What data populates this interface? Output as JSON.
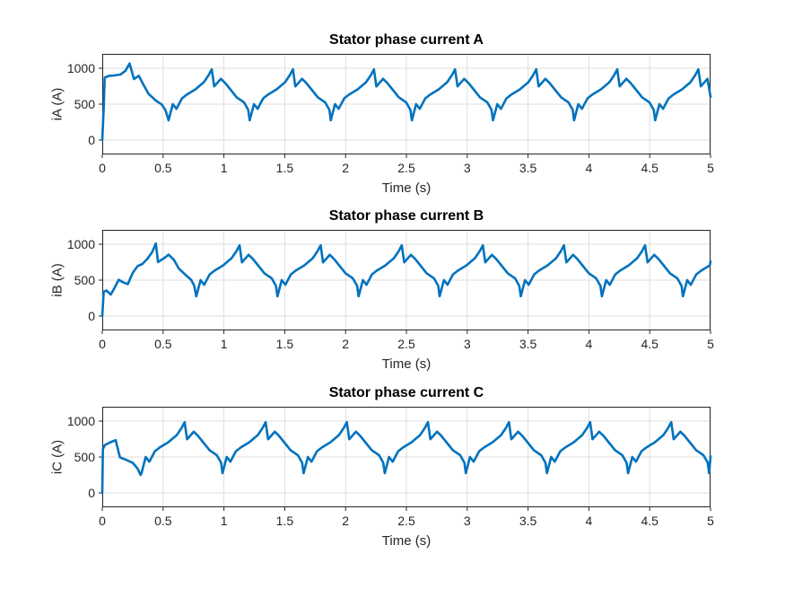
{
  "figure": {
    "background_color": "#ffffff",
    "line_color": "#0072BD",
    "grid_color": "#dedede",
    "axis_color": "#262626",
    "text_color": "#262626"
  },
  "chart_data": {
    "type": "line",
    "xlabel": "Time (s)",
    "xlim": [
      0,
      5
    ],
    "ylim": [
      -200,
      1200
    ],
    "grid": true,
    "legend": "none",
    "xticks": [
      0,
      0.5,
      1,
      1.5,
      2,
      2.5,
      3,
      3.5,
      4,
      4.5,
      5
    ],
    "xtick_labels": [
      "0",
      "0.5",
      "1",
      "1.5",
      "2",
      "2.5",
      "3",
      "3.5",
      "4",
      "4.5",
      "5"
    ],
    "yticks": [
      0,
      500,
      1000
    ],
    "ytick_labels": [
      "0",
      "500",
      "1000"
    ],
    "period_s": 0.667,
    "cycle_template_rel_time_value": [
      [
        0.0,
        275
      ],
      [
        0.035,
        500
      ],
      [
        0.065,
        435
      ],
      [
        0.11,
        580
      ],
      [
        0.15,
        632
      ],
      [
        0.22,
        705
      ],
      [
        0.29,
        805
      ],
      [
        0.33,
        905
      ],
      [
        0.355,
        985
      ],
      [
        0.375,
        748
      ],
      [
        0.43,
        852
      ],
      [
        0.465,
        795
      ],
      [
        0.51,
        700
      ],
      [
        0.56,
        595
      ],
      [
        0.62,
        525
      ],
      [
        0.655,
        420
      ]
    ],
    "subplots": [
      {
        "title": "Stator phase current A",
        "ylabel": "iA (A)",
        "series_name": "iA",
        "startup_points": [
          [
            0,
            0
          ],
          [
            0.012,
            440
          ],
          [
            0.02,
            870
          ],
          [
            0.06,
            895
          ],
          [
            0.1,
            900
          ],
          [
            0.15,
            912
          ],
          [
            0.19,
            965
          ],
          [
            0.225,
            1065
          ],
          [
            0.26,
            850
          ],
          [
            0.3,
            895
          ],
          [
            0.34,
            765
          ],
          [
            0.38,
            645
          ],
          [
            0.44,
            550
          ],
          [
            0.49,
            495
          ],
          [
            0.52,
            415
          ]
        ],
        "cycle_trough_times": [
          0.545,
          1.212,
          1.878,
          2.545,
          3.212,
          3.878,
          4.545
        ],
        "end_point": [
          5,
          600
        ]
      },
      {
        "title": "Stator phase current B",
        "ylabel": "iB (A)",
        "series_name": "iB",
        "startup_points": [
          [
            0,
            0
          ],
          [
            0.012,
            340
          ],
          [
            0.035,
            355
          ],
          [
            0.07,
            300
          ],
          [
            0.1,
            390
          ],
          [
            0.135,
            505
          ],
          [
            0.17,
            470
          ],
          [
            0.21,
            445
          ],
          [
            0.25,
            600
          ],
          [
            0.29,
            695
          ],
          [
            0.33,
            725
          ],
          [
            0.37,
            795
          ],
          [
            0.41,
            890
          ],
          [
            0.44,
            1010
          ],
          [
            0.458,
            752
          ],
          [
            0.51,
            808
          ],
          [
            0.545,
            855
          ],
          [
            0.59,
            780
          ],
          [
            0.63,
            660
          ],
          [
            0.68,
            580
          ],
          [
            0.73,
            505
          ],
          [
            0.755,
            425
          ]
        ],
        "cycle_trough_times": [
          0.773,
          1.44,
          2.107,
          2.773,
          3.44,
          4.107,
          4.773
        ],
        "end_point": [
          5,
          760
        ]
      },
      {
        "title": "Stator phase current C",
        "ylabel": "iC (A)",
        "series_name": "iC",
        "startup_points": [
          [
            0,
            0
          ],
          [
            0.005,
            610
          ],
          [
            0.02,
            665
          ],
          [
            0.06,
            700
          ],
          [
            0.11,
            735
          ],
          [
            0.145,
            495
          ],
          [
            0.19,
            465
          ],
          [
            0.25,
            420
          ],
          [
            0.29,
            340
          ],
          [
            0.315,
            250
          ]
        ],
        "cycle_trough_times": [
          0.322,
          0.988,
          1.655,
          2.322,
          2.988,
          3.655,
          4.322,
          4.988
        ],
        "end_point": [
          5,
          510
        ]
      }
    ]
  }
}
